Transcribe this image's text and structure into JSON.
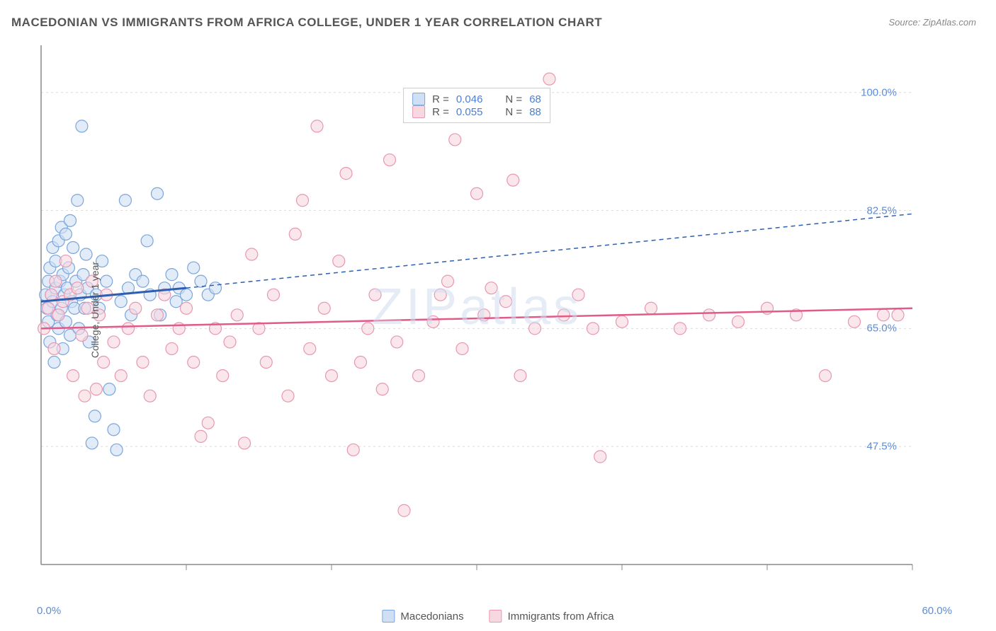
{
  "title": "MACEDONIAN VS IMMIGRANTS FROM AFRICA COLLEGE, UNDER 1 YEAR CORRELATION CHART",
  "source_prefix": "Source: ",
  "source_link": "ZipAtlas.com",
  "ylabel": "College, Under 1 year",
  "watermark": "ZIPatlas",
  "chart": {
    "type": "scatter",
    "xlim": [
      0,
      60
    ],
    "ylim": [
      30,
      107
    ],
    "xtick_step": 10,
    "ytick_positions": [
      47.5,
      65.0,
      82.5,
      100.0
    ],
    "ytick_labels": [
      "47.5%",
      "65.0%",
      "82.5%",
      "100.0%"
    ],
    "xtick_min_label": "0.0%",
    "xtick_max_label": "60.0%",
    "background": "#ffffff",
    "grid_color": "#dcdcdc",
    "axis_color": "#888888",
    "marker_radius": 8.5,
    "marker_stroke_width": 1.2,
    "series": [
      {
        "name": "Macedonians",
        "fill": "#cfe0f5",
        "stroke": "#7ba5db",
        "fill_opacity": 0.6,
        "r": 0.046,
        "n": 68,
        "trend": {
          "x1": 0,
          "y1": 69,
          "x2": 10,
          "y2": 71,
          "color": "#2e5fb0",
          "width": 3,
          "dash": "none",
          "ext_x2": 60,
          "ext_y2": 82,
          "ext_dash": "6,5",
          "ext_width": 1.5
        },
        "points": [
          [
            0.3,
            70
          ],
          [
            0.4,
            68
          ],
          [
            0.5,
            72
          ],
          [
            0.5,
            66
          ],
          [
            0.6,
            74
          ],
          [
            0.6,
            63
          ],
          [
            0.7,
            70
          ],
          [
            0.8,
            77
          ],
          [
            0.8,
            69
          ],
          [
            0.9,
            60
          ],
          [
            1.0,
            75
          ],
          [
            1.0,
            71
          ],
          [
            1.1,
            67
          ],
          [
            1.2,
            78
          ],
          [
            1.2,
            65
          ],
          [
            1.3,
            72
          ],
          [
            1.4,
            80
          ],
          [
            1.4,
            68
          ],
          [
            1.5,
            62
          ],
          [
            1.5,
            73
          ],
          [
            1.6,
            70
          ],
          [
            1.7,
            79
          ],
          [
            1.7,
            66
          ],
          [
            1.8,
            71
          ],
          [
            1.9,
            74
          ],
          [
            2.0,
            81
          ],
          [
            2.0,
            64
          ],
          [
            2.1,
            69
          ],
          [
            2.2,
            77
          ],
          [
            2.3,
            68
          ],
          [
            2.4,
            72
          ],
          [
            2.5,
            84
          ],
          [
            2.6,
            65
          ],
          [
            2.7,
            70
          ],
          [
            2.8,
            95
          ],
          [
            2.9,
            73
          ],
          [
            3.0,
            68
          ],
          [
            3.1,
            76
          ],
          [
            3.2,
            71
          ],
          [
            3.3,
            63
          ],
          [
            3.5,
            48
          ],
          [
            3.7,
            52
          ],
          [
            3.8,
            70
          ],
          [
            4.0,
            68
          ],
          [
            4.2,
            75
          ],
          [
            4.5,
            72
          ],
          [
            4.7,
            56
          ],
          [
            5.0,
            50
          ],
          [
            5.2,
            47
          ],
          [
            5.5,
            69
          ],
          [
            5.8,
            84
          ],
          [
            6.0,
            71
          ],
          [
            6.2,
            67
          ],
          [
            6.5,
            73
          ],
          [
            7.0,
            72
          ],
          [
            7.3,
            78
          ],
          [
            7.5,
            70
          ],
          [
            8.0,
            85
          ],
          [
            8.2,
            67
          ],
          [
            8.5,
            71
          ],
          [
            9.0,
            73
          ],
          [
            9.3,
            69
          ],
          [
            9.5,
            71
          ],
          [
            10,
            70
          ],
          [
            10.5,
            74
          ],
          [
            11,
            72
          ],
          [
            11.5,
            70
          ],
          [
            12,
            71
          ]
        ]
      },
      {
        "name": "Immigrants from Africa",
        "fill": "#f7d7e0",
        "stroke": "#e997b1",
        "fill_opacity": 0.6,
        "r": 0.055,
        "n": 88,
        "trend": {
          "x1": 0,
          "y1": 65,
          "x2": 60,
          "y2": 68,
          "color": "#e05a8a",
          "width": 2.5,
          "dash": "none"
        },
        "points": [
          [
            0.2,
            65
          ],
          [
            0.5,
            68
          ],
          [
            0.7,
            70
          ],
          [
            0.9,
            62
          ],
          [
            1.0,
            72
          ],
          [
            1.2,
            67
          ],
          [
            1.5,
            69
          ],
          [
            1.7,
            75
          ],
          [
            2.0,
            70
          ],
          [
            2.2,
            58
          ],
          [
            2.5,
            71
          ],
          [
            2.8,
            64
          ],
          [
            3.0,
            55
          ],
          [
            3.2,
            68
          ],
          [
            3.5,
            72
          ],
          [
            3.8,
            56
          ],
          [
            4.0,
            67
          ],
          [
            4.3,
            60
          ],
          [
            4.5,
            70
          ],
          [
            5.0,
            63
          ],
          [
            5.5,
            58
          ],
          [
            6.0,
            65
          ],
          [
            6.5,
            68
          ],
          [
            7.0,
            60
          ],
          [
            7.5,
            55
          ],
          [
            8.0,
            67
          ],
          [
            8.5,
            70
          ],
          [
            9.0,
            62
          ],
          [
            9.5,
            65
          ],
          [
            10,
            68
          ],
          [
            10.5,
            60
          ],
          [
            11,
            49
          ],
          [
            11.5,
            51
          ],
          [
            12,
            65
          ],
          [
            12.5,
            58
          ],
          [
            13,
            63
          ],
          [
            13.5,
            67
          ],
          [
            14,
            48
          ],
          [
            14.5,
            76
          ],
          [
            15,
            65
          ],
          [
            15.5,
            60
          ],
          [
            16,
            70
          ],
          [
            17,
            55
          ],
          [
            17.5,
            79
          ],
          [
            18,
            84
          ],
          [
            18.5,
            62
          ],
          [
            19,
            95
          ],
          [
            19.5,
            68
          ],
          [
            20,
            58
          ],
          [
            20.5,
            75
          ],
          [
            21,
            88
          ],
          [
            21.5,
            47
          ],
          [
            22,
            60
          ],
          [
            22.5,
            65
          ],
          [
            23,
            70
          ],
          [
            23.5,
            56
          ],
          [
            24,
            90
          ],
          [
            24.5,
            63
          ],
          [
            25,
            38
          ],
          [
            26,
            58
          ],
          [
            27,
            66
          ],
          [
            27.5,
            70
          ],
          [
            28,
            72
          ],
          [
            28.5,
            93
          ],
          [
            29,
            62
          ],
          [
            30,
            85
          ],
          [
            30.5,
            67
          ],
          [
            31,
            71
          ],
          [
            32,
            69
          ],
          [
            32.5,
            87
          ],
          [
            33,
            58
          ],
          [
            34,
            65
          ],
          [
            35,
            102
          ],
          [
            36,
            67
          ],
          [
            37,
            70
          ],
          [
            38,
            65
          ],
          [
            38.5,
            46
          ],
          [
            40,
            66
          ],
          [
            42,
            68
          ],
          [
            44,
            65
          ],
          [
            46,
            67
          ],
          [
            48,
            66
          ],
          [
            50,
            68
          ],
          [
            52,
            67
          ],
          [
            54,
            58
          ],
          [
            56,
            66
          ],
          [
            58,
            67
          ],
          [
            59,
            67
          ]
        ]
      }
    ]
  },
  "legend_top": {
    "labels": {
      "r": "R =",
      "n": "N ="
    }
  },
  "bottom_legend": [
    {
      "label": "Macedonians",
      "fill": "#cfe0f5",
      "stroke": "#7ba5db"
    },
    {
      "label": "Immigrants from Africa",
      "fill": "#f7d7e0",
      "stroke": "#e997b1"
    }
  ]
}
